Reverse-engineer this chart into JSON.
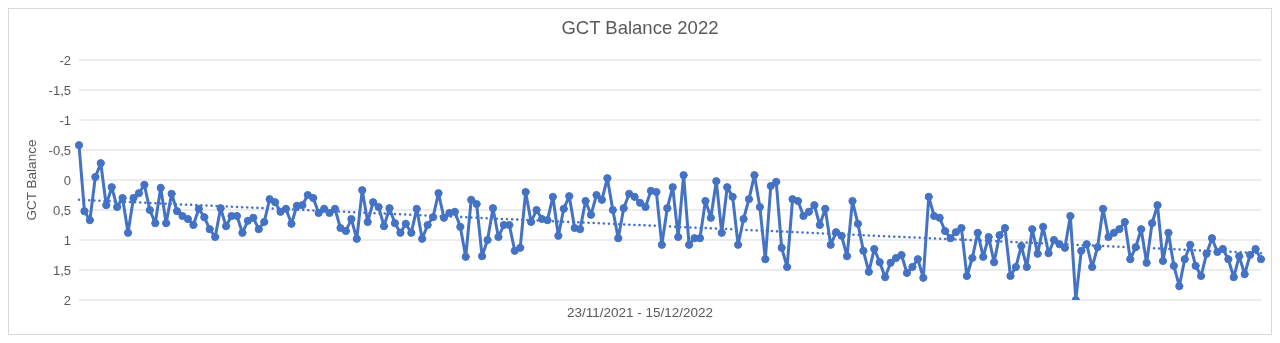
{
  "chart_data": {
    "type": "line",
    "title": "GCT Balance 2022",
    "xlabel": "23/11/2021 - 15/12/2022",
    "ylabel": "GCT Balance",
    "categories": [
      null,
      null,
      null,
      null,
      null,
      null,
      null,
      null,
      null,
      null,
      null,
      null,
      null,
      null,
      null,
      null,
      null,
      null,
      null,
      null,
      null,
      null,
      null,
      null,
      null,
      null,
      null,
      null,
      null,
      null,
      null,
      null,
      null,
      null,
      null,
      null,
      null,
      null,
      null,
      null,
      null,
      null,
      null,
      null,
      null,
      null,
      null,
      null,
      null,
      null,
      null,
      null,
      null,
      null,
      null,
      null,
      null,
      null,
      null,
      null,
      null,
      null,
      null,
      null,
      null,
      null,
      null,
      null,
      null,
      null,
      null,
      null,
      null,
      null,
      null,
      null,
      null,
      null,
      null,
      null,
      null,
      null,
      null,
      null,
      null,
      null,
      null,
      null,
      null,
      null,
      null,
      null,
      null,
      null,
      null,
      null,
      null,
      null,
      null,
      null,
      null,
      null,
      null,
      null,
      null,
      null,
      null,
      null,
      null,
      null,
      null,
      null,
      null,
      null,
      null,
      null,
      null,
      null,
      null,
      null,
      null,
      null,
      null,
      null,
      null,
      null,
      null,
      null,
      null,
      null,
      null,
      null,
      null,
      null,
      null,
      null,
      null,
      null,
      null,
      null,
      null,
      null,
      null,
      null,
      null,
      null,
      null,
      null,
      null,
      null,
      null,
      null,
      null,
      null,
      null,
      null,
      null,
      null,
      null,
      null,
      null,
      null,
      null,
      null,
      null,
      null,
      null,
      null,
      null,
      null,
      null,
      null,
      null,
      null,
      null,
      null,
      null,
      null,
      null,
      null,
      null,
      null,
      null,
      null,
      null,
      null,
      null,
      null,
      null,
      null,
      null,
      null,
      null,
      null,
      null,
      null,
      null,
      null,
      null,
      null,
      null,
      null,
      null,
      null,
      null,
      null,
      null,
      null,
      null,
      null,
      null,
      null,
      null,
      null,
      null,
      null,
      null,
      null
    ],
    "series": [
      {
        "color": "#4472c4",
        "marker": "circle",
        "line_style": "solid",
        "values": [
          -0.58,
          0.52,
          0.67,
          -0.05,
          -0.28,
          0.42,
          0.12,
          0.45,
          0.3,
          0.88,
          0.3,
          0.22,
          0.08,
          0.5,
          0.72,
          0.13,
          0.72,
          0.23,
          0.52,
          0.6,
          0.65,
          0.75,
          0.48,
          0.62,
          0.82,
          0.95,
          0.47,
          0.77,
          0.6,
          0.6,
          0.88,
          0.68,
          0.63,
          0.82,
          0.7,
          0.32,
          0.37,
          0.53,
          0.48,
          0.73,
          0.43,
          0.42,
          0.25,
          0.3,
          0.55,
          0.48,
          0.55,
          0.48,
          0.8,
          0.85,
          0.65,
          0.98,
          0.17,
          0.7,
          0.37,
          0.45,
          0.77,
          0.47,
          0.72,
          0.88,
          0.73,
          0.88,
          0.48,
          0.98,
          0.75,
          0.62,
          0.22,
          0.63,
          0.55,
          0.53,
          0.78,
          1.28,
          0.33,
          0.4,
          1.27,
          1.0,
          0.47,
          0.95,
          0.75,
          0.75,
          1.18,
          1.13,
          0.2,
          0.7,
          0.5,
          0.65,
          0.67,
          0.28,
          0.93,
          0.48,
          0.27,
          0.8,
          0.82,
          0.35,
          0.58,
          0.25,
          0.33,
          -0.03,
          0.5,
          0.97,
          0.47,
          0.23,
          0.28,
          0.38,
          0.45,
          0.18,
          0.2,
          1.08,
          0.47,
          0.12,
          0.95,
          -0.08,
          1.08,
          0.97,
          0.97,
          0.35,
          0.63,
          0.02,
          0.88,
          0.12,
          0.28,
          1.08,
          0.65,
          0.32,
          -0.08,
          0.45,
          1.32,
          0.1,
          0.03,
          1.13,
          1.45,
          0.32,
          0.35,
          0.6,
          0.53,
          0.42,
          0.75,
          0.48,
          1.08,
          0.87,
          0.93,
          1.27,
          0.35,
          0.73,
          1.18,
          1.53,
          1.15,
          1.37,
          1.62,
          1.38,
          1.3,
          1.25,
          1.55,
          1.45,
          1.32,
          1.63,
          0.28,
          0.6,
          0.63,
          0.85,
          0.97,
          0.87,
          0.8,
          1.6,
          1.3,
          0.88,
          1.28,
          0.95,
          1.37,
          0.92,
          0.8,
          1.6,
          1.45,
          1.1,
          1.45,
          0.82,
          1.23,
          0.78,
          1.22,
          1.0,
          1.07,
          1.13,
          0.6,
          2.0,
          1.18,
          1.07,
          1.45,
          1.12,
          0.48,
          0.95,
          0.88,
          0.82,
          0.7,
          1.32,
          1.12,
          0.82,
          1.38,
          0.72,
          0.42,
          1.35,
          0.88,
          1.43,
          1.77,
          1.32,
          1.08,
          1.43,
          1.6,
          1.23,
          0.97,
          1.2,
          1.15,
          1.32,
          1.62,
          1.27,
          1.57,
          1.25,
          1.15,
          1.32
        ]
      },
      {
        "type": "line",
        "color": "#4472c4",
        "marker": "none",
        "line_style": "dotted",
        "values": [
          0.33,
          null,
          null,
          null,
          null,
          null,
          null,
          null,
          null,
          null,
          null,
          null,
          null,
          null,
          null,
          null,
          null,
          null,
          null,
          null,
          null,
          null,
          null,
          null,
          null,
          null,
          null,
          null,
          null,
          null,
          null,
          null,
          null,
          null,
          null,
          null,
          null,
          null,
          null,
          null,
          null,
          null,
          null,
          null,
          null,
          null,
          null,
          null,
          null,
          null,
          null,
          null,
          null,
          null,
          null,
          null,
          null,
          null,
          null,
          null,
          null,
          null,
          null,
          null,
          null,
          null,
          null,
          null,
          null,
          null,
          null,
          null,
          null,
          null,
          null,
          null,
          null,
          null,
          null,
          null,
          null,
          null,
          null,
          null,
          null,
          null,
          null,
          null,
          null,
          null,
          null,
          null,
          null,
          null,
          null,
          null,
          null,
          null,
          null,
          null,
          null,
          null,
          null,
          null,
          null,
          null,
          null,
          null,
          null,
          null,
          null,
          null,
          null,
          null,
          null,
          null,
          null,
          null,
          null,
          null,
          null,
          null,
          null,
          null,
          null,
          null,
          null,
          null,
          null,
          null,
          null,
          null,
          null,
          null,
          null,
          null,
          null,
          null,
          null,
          null,
          null,
          null,
          null,
          null,
          null,
          null,
          null,
          null,
          null,
          null,
          null,
          null,
          null,
          null,
          null,
          null,
          null,
          null,
          null,
          null,
          null,
          null,
          null,
          null,
          null,
          null,
          null,
          null,
          null,
          null,
          null,
          null,
          null,
          null,
          null,
          null,
          null,
          null,
          null,
          null,
          null,
          null,
          null,
          null,
          null,
          null,
          null,
          null,
          null,
          null,
          null,
          null,
          null,
          null,
          null,
          null,
          null,
          null,
          null,
          null,
          null,
          null,
          null,
          null,
          null,
          null,
          null,
          null,
          null,
          null,
          null,
          null,
          null,
          null,
          null,
          null,
          null,
          1.22
        ]
      }
    ],
    "ylim": [
      2,
      -2
    ],
    "yticks": [
      -2,
      {
        "value": -1.5,
        "label": "-1,5"
      },
      -1,
      {
        "value": -0.5,
        "label": "-0,5"
      },
      0,
      {
        "value": 0.5,
        "label": "0,5"
      },
      1,
      {
        "value": 1.5,
        "label": "1,5"
      },
      2
    ],
    "grid": "y"
  }
}
